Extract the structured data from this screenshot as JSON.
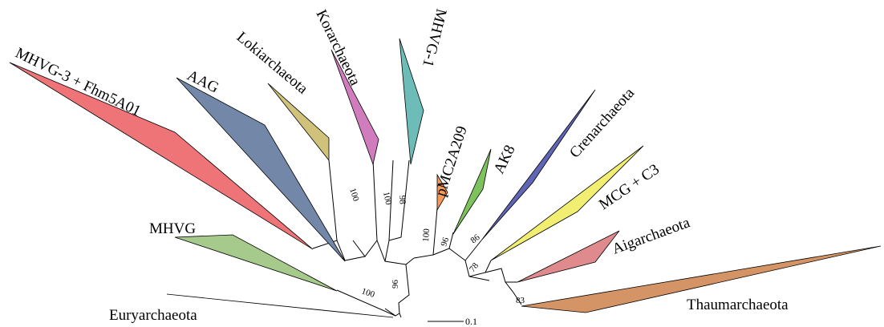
{
  "clades": [
    {
      "key": "eury",
      "name": "Euryarchaeota",
      "color": "#6d6d6d"
    },
    {
      "key": "mhvg",
      "name": "MHVG",
      "color": "#a6c98c"
    },
    {
      "key": "mhvg3",
      "name": "MHVG-3 + Fhm5A01",
      "color": "#ef7478"
    },
    {
      "key": "aag",
      "name": "AAG",
      "color": "#7388a8"
    },
    {
      "key": "loki",
      "name": "Lokiarchaeota",
      "color": "#d0c27a"
    },
    {
      "key": "kor",
      "name": "Korarchaeota",
      "color": "#d07cbd"
    },
    {
      "key": "mhvg1",
      "name": "MHVG-1",
      "color": "#6dbcb8"
    },
    {
      "key": "pmc",
      "name": "pMC2A209",
      "color": "#f59a5a"
    },
    {
      "key": "ak8",
      "name": "AK8",
      "color": "#7dc25d"
    },
    {
      "key": "cren",
      "name": "Crenarchaeota",
      "color": "#6066b5"
    },
    {
      "key": "mcg",
      "name": "MCG + C3",
      "color": "#f2ee72"
    },
    {
      "key": "aig",
      "name": "Aigarchaeota",
      "color": "#df8a8c"
    },
    {
      "key": "thaum",
      "name": "Thaumarchaeota",
      "color": "#d59465"
    }
  ],
  "bootstrap": [
    "100",
    "96",
    "100",
    "100",
    "98",
    "100",
    "96",
    "78",
    "86",
    "83"
  ],
  "scale_bar": {
    "label": "0.1"
  }
}
